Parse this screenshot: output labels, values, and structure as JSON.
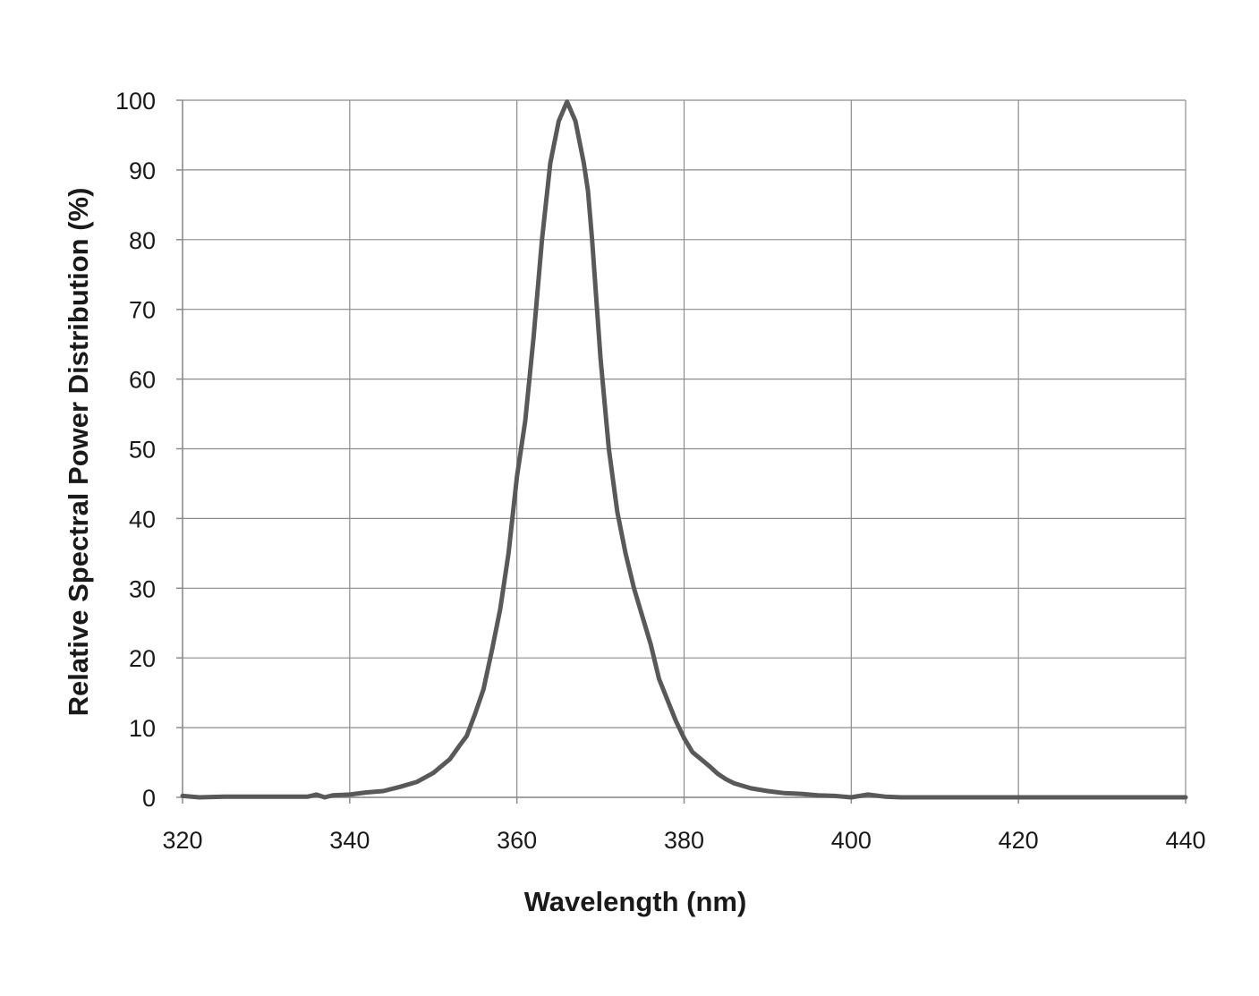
{
  "chart_data": {
    "type": "line",
    "title": "",
    "xlabel": "Wavelength (nm)",
    "ylabel": "Relative Spectral Power Distribution (%)",
    "xlim": [
      320,
      440
    ],
    "ylim": [
      0,
      100
    ],
    "xticks": [
      "320",
      "340",
      "360",
      "380",
      "400",
      "420",
      "440"
    ],
    "yticks": [
      "0",
      "10",
      "20",
      "30",
      "40",
      "50",
      "60",
      "70",
      "80",
      "90",
      "100"
    ],
    "grid": true,
    "legend": "none",
    "line_color": "#595959",
    "series": [
      {
        "x": [
          320,
          322,
          325,
          330,
          335,
          336,
          337,
          338,
          340,
          342,
          344,
          346,
          348,
          350,
          352,
          353,
          354,
          355,
          356,
          357,
          358,
          359,
          360,
          361,
          362,
          363,
          364,
          365,
          366,
          367,
          368,
          368.5,
          369,
          370,
          371,
          372,
          373,
          374,
          375,
          376,
          377,
          378,
          379,
          380,
          381,
          382,
          383,
          384,
          385,
          386,
          388,
          390,
          392,
          394,
          396,
          398,
          400,
          402,
          404,
          406,
          408,
          410,
          412,
          413,
          414,
          416,
          420,
          425,
          430,
          435,
          440
        ],
        "y": [
          0.2,
          0,
          0.1,
          0.1,
          0.1,
          0.4,
          0,
          0.3,
          0.4,
          0.7,
          0.9,
          1.5,
          2.2,
          3.5,
          5.5,
          7.2,
          8.8,
          12,
          15.5,
          21,
          27,
          35,
          46,
          54,
          66,
          80,
          91,
          97,
          99.8,
          97,
          91,
          87,
          80,
          63,
          50,
          41,
          35,
          30,
          26,
          22,
          17,
          14,
          11,
          8.5,
          6.5,
          5.5,
          4.5,
          3.4,
          2.6,
          2.0,
          1.3,
          0.9,
          0.6,
          0.5,
          0.3,
          0.2,
          0,
          0.4,
          0.1,
          0,
          0,
          0,
          0,
          0,
          0,
          0,
          0,
          0,
          0,
          0,
          0
        ]
      }
    ]
  }
}
